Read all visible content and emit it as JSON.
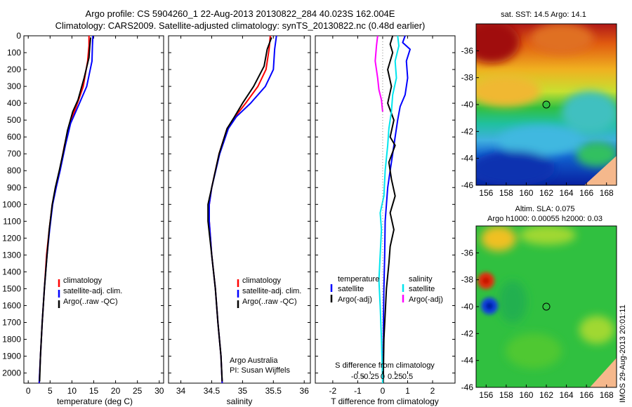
{
  "header": {
    "title_line1": "Argo profile: CS 5904260_1 22-Aug-2013 20130822_284 40.023S 162.004E",
    "title_line2": "Climatology: CARS2009. Satellite-adjusted climatology: synTS_20130822.nc (0.48d earlier)"
  },
  "colors": {
    "climatology": "#ff0000",
    "satellite": "#0000ff",
    "argo": "#000000",
    "salinity_satellite": "#00e5ee",
    "salinity_argo": "#ff00ff",
    "land": "#f5b88c",
    "float_marker": "#000000"
  },
  "chart_data": [
    {
      "id": "temperature",
      "type": "line",
      "xlabel": "temperature (deg C)",
      "ylabel": "",
      "xlim": [
        -1,
        31
      ],
      "ylim": [
        2060,
        0
      ],
      "xticks": [
        0,
        5,
        10,
        15,
        20,
        25,
        30
      ],
      "yticks": [
        0,
        100,
        200,
        300,
        400,
        500,
        600,
        700,
        800,
        900,
        1000,
        1100,
        1200,
        1300,
        1400,
        1500,
        1600,
        1700,
        1800,
        1900,
        2000
      ],
      "legend": {
        "placement": "bottom-left",
        "entries": [
          "climatology",
          "satellite-adj. clim.",
          "Argo(..raw -QC)"
        ]
      },
      "series": [
        {
          "name": "climatology",
          "color": "#ff0000",
          "points": [
            [
              13.9,
              0
            ],
            [
              13.9,
              60
            ],
            [
              13.6,
              150
            ],
            [
              12.6,
              300
            ],
            [
              11.0,
              420
            ],
            [
              9.5,
              520
            ],
            [
              8.3,
              650
            ],
            [
              7.2,
              800
            ],
            [
              6.3,
              900
            ],
            [
              5.5,
              1000
            ],
            [
              4.8,
              1150
            ],
            [
              4.2,
              1300
            ],
            [
              3.7,
              1500
            ],
            [
              3.2,
              1700
            ],
            [
              2.8,
              1900
            ],
            [
              2.5,
              2060
            ]
          ]
        },
        {
          "name": "satellite-adj. clim.",
          "color": "#0000ff",
          "points": [
            [
              14.8,
              0
            ],
            [
              14.7,
              60
            ],
            [
              14.6,
              150
            ],
            [
              13.4,
              300
            ],
            [
              11.4,
              420
            ],
            [
              9.7,
              520
            ],
            [
              8.5,
              650
            ],
            [
              7.3,
              800
            ],
            [
              6.4,
              900
            ],
            [
              5.6,
              1000
            ],
            [
              4.9,
              1150
            ],
            [
              4.3,
              1300
            ],
            [
              3.7,
              1500
            ],
            [
              3.2,
              1700
            ],
            [
              2.8,
              1900
            ],
            [
              2.5,
              2060
            ]
          ]
        },
        {
          "name": "Argo(..raw -QC)",
          "color": "#000000",
          "points": [
            [
              14.3,
              10
            ],
            [
              14.1,
              60
            ],
            [
              13.9,
              130
            ],
            [
              12.8,
              250
            ],
            [
              11.4,
              380
            ],
            [
              10.2,
              450
            ],
            [
              9.0,
              560
            ],
            [
              8.1,
              680
            ],
            [
              7.1,
              800
            ],
            [
              6.2,
              900
            ],
            [
              5.5,
              1000
            ],
            [
              4.8,
              1150
            ],
            [
              4.3,
              1300
            ],
            [
              3.7,
              1500
            ],
            [
              3.2,
              1700
            ],
            [
              2.8,
              1900
            ],
            [
              2.6,
              2050
            ]
          ]
        }
      ]
    },
    {
      "id": "salinity",
      "type": "line",
      "xlabel": "salinity",
      "ylabel": "",
      "xlim": [
        33.8,
        36.1
      ],
      "ylim": [
        2060,
        0
      ],
      "xticks": [
        34,
        34.5,
        35,
        35.5,
        36
      ],
      "xtick_labels": [
        "34",
        "34.5",
        "35",
        "35.5",
        "36"
      ],
      "legend": {
        "placement": "bottom-right",
        "entries": [
          "climatology",
          "satellite-adj. clim.",
          "Argo(..raw -QC)"
        ]
      },
      "annotation": [
        "Argo Australia",
        "PI: Susan Wijffels"
      ],
      "series": [
        {
          "name": "climatology",
          "color": "#ff0000",
          "points": [
            [
              35.45,
              0
            ],
            [
              35.43,
              80
            ],
            [
              35.38,
              200
            ],
            [
              35.25,
              300
            ],
            [
              35.05,
              400
            ],
            [
              34.88,
              480
            ],
            [
              34.75,
              550
            ],
            [
              34.62,
              700
            ],
            [
              34.5,
              900
            ],
            [
              34.46,
              1000
            ],
            [
              34.46,
              1100
            ],
            [
              34.5,
              1300
            ],
            [
              34.56,
              1500
            ],
            [
              34.6,
              1700
            ],
            [
              34.65,
              1900
            ],
            [
              34.67,
              2060
            ]
          ]
        },
        {
          "name": "satellite-adj. clim.",
          "color": "#0000ff",
          "points": [
            [
              35.55,
              0
            ],
            [
              35.52,
              80
            ],
            [
              35.5,
              200
            ],
            [
              35.37,
              300
            ],
            [
              35.13,
              400
            ],
            [
              34.9,
              480
            ],
            [
              34.77,
              550
            ],
            [
              34.63,
              700
            ],
            [
              34.5,
              900
            ],
            [
              34.46,
              1000
            ],
            [
              34.46,
              1100
            ],
            [
              34.5,
              1300
            ],
            [
              34.56,
              1500
            ],
            [
              34.6,
              1700
            ],
            [
              34.65,
              1900
            ],
            [
              34.67,
              2060
            ]
          ]
        },
        {
          "name": "Argo(..raw -QC)",
          "color": "#000000",
          "points": [
            [
              35.47,
              10
            ],
            [
              35.4,
              80
            ],
            [
              35.35,
              180
            ],
            [
              35.18,
              300
            ],
            [
              35.0,
              400
            ],
            [
              34.87,
              480
            ],
            [
              34.75,
              550
            ],
            [
              34.62,
              700
            ],
            [
              34.5,
              900
            ],
            [
              34.44,
              1000
            ],
            [
              34.44,
              1100
            ],
            [
              34.5,
              1300
            ],
            [
              34.56,
              1500
            ],
            [
              34.6,
              1700
            ],
            [
              34.65,
              1900
            ],
            [
              34.67,
              2050
            ]
          ]
        }
      ]
    },
    {
      "id": "differences",
      "type": "line",
      "xlabel": "T difference from climatology",
      "xlabel_top": "S difference from climatology",
      "ylabel": "",
      "xlim": [
        -2.7,
        2.9
      ],
      "ylim": [
        2060,
        0
      ],
      "xticks": [
        -2,
        -1,
        0,
        1,
        2
      ],
      "s_xticks": [
        -0.5,
        -0.25,
        0,
        0.25,
        0.5
      ],
      "s_xtick_labels": [
        "-0.5",
        "-0.25",
        "0",
        "0.25",
        "0.5"
      ],
      "s_scale": 2.0,
      "legend": {
        "placement": "bottom",
        "entries": [
          "temperature",
          "satellite",
          "Argo(-adj)",
          "salinity",
          "satellite",
          "Argo(-adj)"
        ]
      },
      "legend_groups": {
        "temperature": "temperature",
        "salinity": "salinity",
        "satellite": "satellite",
        "argo": "Argo(-adj)"
      },
      "series": [
        {
          "name": "temperature satellite",
          "color": "#0000ff",
          "points": [
            [
              0.9,
              0
            ],
            [
              0.8,
              40
            ],
            [
              1.1,
              80
            ],
            [
              0.95,
              150
            ],
            [
              1.0,
              250
            ],
            [
              0.9,
              350
            ],
            [
              0.7,
              420
            ],
            [
              0.6,
              500
            ],
            [
              0.5,
              600
            ],
            [
              0.4,
              700
            ],
            [
              0.3,
              800
            ],
            [
              0.2,
              900
            ],
            [
              0.15,
              1000
            ],
            [
              0.1,
              1100
            ],
            [
              0.08,
              1300
            ],
            [
              0.05,
              1500
            ],
            [
              0.03,
              1700
            ],
            [
              0.02,
              1900
            ],
            [
              0.01,
              2060
            ]
          ]
        },
        {
          "name": "temperature Argo(-adj)",
          "color": "#000000",
          "points": [
            [
              0.4,
              0
            ],
            [
              0.3,
              50
            ],
            [
              0.4,
              100
            ],
            [
              0.2,
              200
            ],
            [
              0.35,
              300
            ],
            [
              0.2,
              400
            ],
            [
              0.45,
              500
            ],
            [
              0.3,
              600
            ],
            [
              0.5,
              650
            ],
            [
              0.25,
              750
            ],
            [
              0.35,
              850
            ],
            [
              0.5,
              950
            ],
            [
              0.3,
              1050
            ],
            [
              0.45,
              1150
            ],
            [
              0.3,
              1250
            ],
            [
              0.25,
              1350
            ],
            [
              0.15,
              1500
            ],
            [
              0.1,
              1650
            ],
            [
              0.05,
              1800
            ],
            [
              0.02,
              2060
            ]
          ]
        },
        {
          "name": "salinity satellite",
          "color": "#00e5ee",
          "points": [
            [
              0.6,
              0
            ],
            [
              0.65,
              60
            ],
            [
              0.5,
              150
            ],
            [
              0.55,
              250
            ],
            [
              0.4,
              350
            ],
            [
              0.35,
              450
            ],
            [
              0.25,
              550
            ],
            [
              0.2,
              650
            ],
            [
              0.1,
              800
            ],
            [
              0.05,
              950
            ],
            [
              -0.1,
              1050
            ],
            [
              -0.05,
              1150
            ],
            [
              -0.1,
              1300
            ],
            [
              -0.15,
              1450
            ],
            [
              -0.1,
              1600
            ],
            [
              -0.05,
              1800
            ],
            [
              0.0,
              2060
            ]
          ]
        },
        {
          "name": "salinity Argo(-adj)",
          "color": "#ff00ff",
          "points": [
            [
              -0.2,
              0
            ],
            [
              -0.25,
              60
            ],
            [
              -0.3,
              150
            ],
            [
              -0.2,
              250
            ],
            [
              -0.15,
              320
            ],
            [
              -0.05,
              380
            ],
            [
              0.0,
              450
            ]
          ]
        }
      ]
    }
  ],
  "maps": [
    {
      "id": "sst-map",
      "title": "sat. SST: 14.5 Argo: 14.1",
      "xlim": [
        155,
        169
      ],
      "ylim": [
        -46,
        -34
      ],
      "xticks": [
        156,
        158,
        160,
        162,
        164,
        166,
        168
      ],
      "yticks": [
        -36,
        -38,
        -40,
        -42,
        -44,
        -46
      ],
      "float_position": [
        162,
        -40
      ]
    },
    {
      "id": "sla-map",
      "title_line1": "Altim. SLA: 0.075",
      "title_line2": "Argo h1000: 0.00055 h2000: 0.03",
      "xlim": [
        155,
        169
      ],
      "ylim": [
        -46,
        -34
      ],
      "xticks": [
        156,
        158,
        160,
        162,
        164,
        166,
        168
      ],
      "yticks": [
        -36,
        -38,
        -40,
        -42,
        -44,
        -46
      ],
      "float_position": [
        162,
        -40
      ]
    }
  ],
  "footer": {
    "stamp": "IMOS 29-Aug-2013 20:01:11"
  }
}
